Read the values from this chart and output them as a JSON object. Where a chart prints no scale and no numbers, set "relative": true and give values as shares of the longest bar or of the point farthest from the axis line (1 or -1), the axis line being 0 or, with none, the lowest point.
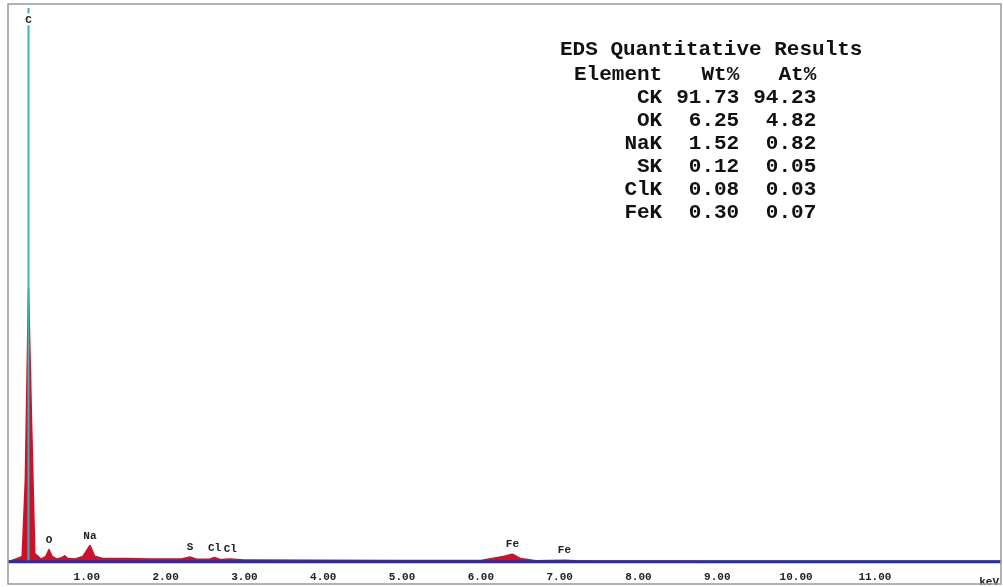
{
  "chart_data": {
    "type": "area",
    "relative": true,
    "title": "EDS Quantitative Results",
    "x": [
      0.0,
      0.1,
      0.18,
      0.22,
      0.26,
      0.3,
      0.34,
      0.42,
      0.48,
      0.52,
      0.56,
      0.62,
      0.68,
      0.72,
      0.76,
      0.85,
      0.95,
      1.04,
      1.1,
      1.2,
      1.5,
      1.8,
      2.2,
      2.31,
      2.4,
      2.55,
      2.62,
      2.7,
      2.82,
      3.0,
      4.0,
      5.0,
      6.0,
      6.3,
      6.4,
      6.5,
      6.7,
      7.06,
      7.2,
      8.0,
      9.0,
      10.0,
      11.0,
      12.0,
      12.6
    ],
    "series": [
      {
        "color": "#d0102a",
        "values": [
          0,
          0.01,
          0.02,
          0.3,
          1,
          0.5,
          0.03,
          0.01,
          0.02,
          0.045,
          0.02,
          0.01,
          0.015,
          0.022,
          0.012,
          0.01,
          0.02,
          0.06,
          0.02,
          0.012,
          0.012,
          0.01,
          0.01,
          0.018,
          0.009,
          0.009,
          0.016,
          0.008,
          0.01,
          0.007,
          0.006,
          0.005,
          0.005,
          0.02,
          0.028,
          0.012,
          0.004,
          0.006,
          0.004,
          0.003,
          0.002,
          0.002,
          0.002,
          0.002,
          0.002
        ]
      }
    ],
    "xlim": [
      0,
      12.6
    ],
    "xticks": [
      {
        "value": 1,
        "label": "1.00"
      },
      {
        "value": 2,
        "label": "2.00"
      },
      {
        "value": 3,
        "label": "3.00"
      },
      {
        "value": 4,
        "label": "4.00"
      },
      {
        "value": 5,
        "label": "5.00"
      },
      {
        "value": 6,
        "label": "6.00"
      },
      {
        "value": 7,
        "label": "7.00"
      },
      {
        "value": 8,
        "label": "8.00"
      },
      {
        "value": 9,
        "label": "9.00"
      },
      {
        "value": 10,
        "label": "10.00"
      },
      {
        "value": 11,
        "label": "11.00"
      }
    ],
    "xlabel": "keV",
    "grid": false,
    "legend": false,
    "ref_lines": [
      {
        "axis": "x",
        "value": 0.26,
        "color": "#40b0b0"
      }
    ],
    "annotations": [
      {
        "text": "C",
        "x": 0.26,
        "y": 1.95
      },
      {
        "text": "O",
        "x": 0.52,
        "y": 0.045
      },
      {
        "text": "Na",
        "x": 1.04,
        "y": 0.06
      },
      {
        "text": "S",
        "x": 2.31,
        "y": 0.018
      },
      {
        "text": "Cl",
        "x": 2.62,
        "y": 0.016
      },
      {
        "text": "Cl",
        "x": 2.82,
        "y": 0.01
      },
      {
        "text": "Fe",
        "x": 6.4,
        "y": 0.028
      },
      {
        "text": "Fe",
        "x": 7.06,
        "y": 0.006
      },
      "Element Wt% At%",
      "CK 91.73 94.23",
      "OK 6.25 4.82",
      "NaK 1.52 0.82",
      "SK 0.12 0.05",
      "ClK 0.08 0.03",
      "FeK 0.30 0.07"
    ]
  }
}
